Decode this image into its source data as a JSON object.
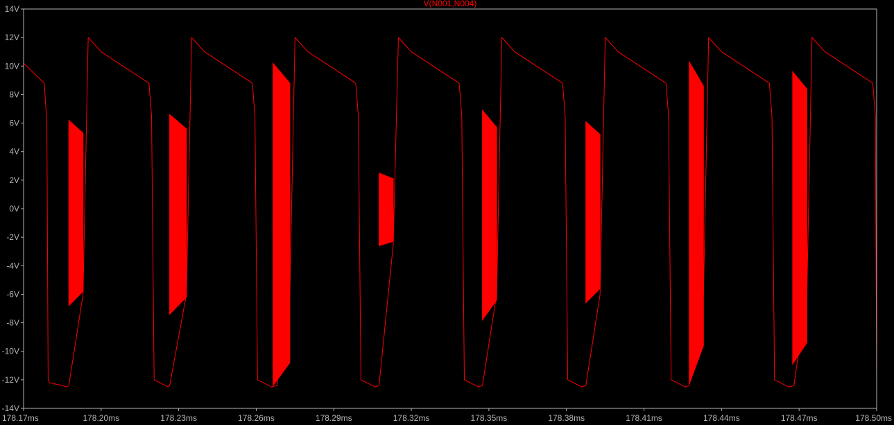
{
  "chart_data": {
    "type": "line",
    "title": "V(N001,N004)",
    "xlabel": "",
    "ylabel": "",
    "xlim": [
      178.17,
      178.5
    ],
    "ylim": [
      -14,
      14
    ],
    "grid": false,
    "x_ticks": [
      178.17,
      178.2,
      178.23,
      178.26,
      178.29,
      178.32,
      178.35,
      178.38,
      178.41,
      178.44,
      178.47,
      178.5
    ],
    "x_tick_labels": [
      "178.17ms",
      "178.20ms",
      "178.23ms",
      "178.26ms",
      "178.29ms",
      "178.32ms",
      "178.35ms",
      "178.38ms",
      "178.41ms",
      "178.44ms",
      "178.47ms",
      "178.50ms"
    ],
    "y_ticks": [
      14,
      12,
      10,
      8,
      6,
      4,
      2,
      0,
      -2,
      -4,
      -6,
      -8,
      -10,
      -12,
      -14
    ],
    "y_tick_labels": [
      "14V",
      "12V",
      "10V",
      "8V",
      "6V",
      "4V",
      "2V",
      "0V",
      "-2V",
      "-4V",
      "-6V",
      "-8V",
      "-10V",
      "-12V",
      "-14V"
    ],
    "colors": {
      "trace": "#ff0000",
      "axes": "#b4b4b4",
      "background": "#000000"
    },
    "series": [
      {
        "name": "V(N001,N004)",
        "x": [
          178.17,
          178.178,
          178.179,
          178.1795,
          178.18,
          178.185,
          178.1865,
          178.1875,
          178.193,
          178.195,
          178.2,
          178.2185,
          178.2195,
          178.2205,
          178.226,
          178.2265,
          178.233,
          178.235,
          178.24,
          178.2585,
          178.2595,
          178.2605,
          178.266,
          178.268,
          178.273,
          178.275,
          178.28,
          178.2985,
          178.2995,
          178.3005,
          178.306,
          178.3075,
          178.313,
          178.315,
          178.32,
          178.3385,
          178.3395,
          178.3405,
          178.346,
          178.3475,
          178.353,
          178.355,
          178.36,
          178.3785,
          178.3795,
          178.3805,
          178.386,
          178.3875,
          178.393,
          178.395,
          178.4,
          178.4185,
          178.4195,
          178.4205,
          178.426,
          178.4275,
          178.433,
          178.435,
          178.44,
          178.4585,
          178.4595,
          178.4605,
          178.466,
          178.468,
          178.473,
          178.475,
          178.48,
          178.4985,
          178.4995,
          178.5
        ],
        "values": [
          10.2,
          8.8,
          6.0,
          -12.0,
          -12.2,
          -12.4,
          -12.5,
          -12.4,
          -6.0,
          12.0,
          11.0,
          8.8,
          6.5,
          -12.0,
          -12.5,
          -12.4,
          -6.0,
          12.0,
          11.0,
          8.8,
          6.5,
          -12.0,
          -12.5,
          -12.4,
          -6.0,
          12.0,
          11.0,
          8.8,
          6.5,
          -12.0,
          -12.5,
          -12.4,
          -2.5,
          12.0,
          11.0,
          8.8,
          6.5,
          -12.0,
          -12.5,
          -12.4,
          -6.0,
          12.0,
          11.0,
          8.8,
          6.5,
          -12.0,
          -12.5,
          -12.4,
          -6.0,
          12.0,
          11.0,
          8.8,
          6.5,
          -12.0,
          -12.5,
          -12.4,
          -6.0,
          12.0,
          11.0,
          8.8,
          6.5,
          -12.0,
          -12.5,
          -12.4,
          -6.0,
          12.0,
          11.0,
          8.8,
          6.5,
          -12.2
        ]
      }
    ],
    "oscillation_bands": [
      {
        "x_start": 178.1875,
        "x_end": 178.193,
        "high_start": 6.2,
        "high_end": 5.3,
        "low_start": -6.8,
        "low_end": -5.8
      },
      {
        "x_start": 178.2265,
        "x_end": 178.233,
        "high_start": 6.6,
        "high_end": 5.6,
        "low_start": -7.4,
        "low_end": -6.2
      },
      {
        "x_start": 178.2665,
        "x_end": 178.273,
        "high_start": 10.2,
        "high_end": 8.8,
        "low_start": -12.4,
        "low_end": -10.8
      },
      {
        "x_start": 178.3075,
        "x_end": 178.313,
        "high_start": 2.5,
        "high_end": 2.1,
        "low_start": -2.6,
        "low_end": -2.3
      },
      {
        "x_start": 178.3475,
        "x_end": 178.353,
        "high_start": 6.9,
        "high_end": 5.7,
        "low_start": -7.8,
        "low_end": -6.4
      },
      {
        "x_start": 178.3875,
        "x_end": 178.393,
        "high_start": 6.1,
        "high_end": 5.2,
        "low_start": -6.6,
        "low_end": -5.6
      },
      {
        "x_start": 178.4275,
        "x_end": 178.433,
        "high_start": 10.3,
        "high_end": 8.6,
        "low_start": -12.3,
        "low_end": -9.6
      },
      {
        "x_start": 178.4675,
        "x_end": 178.473,
        "high_start": 9.6,
        "high_end": 8.4,
        "low_start": -10.9,
        "low_end": -9.4
      }
    ]
  }
}
